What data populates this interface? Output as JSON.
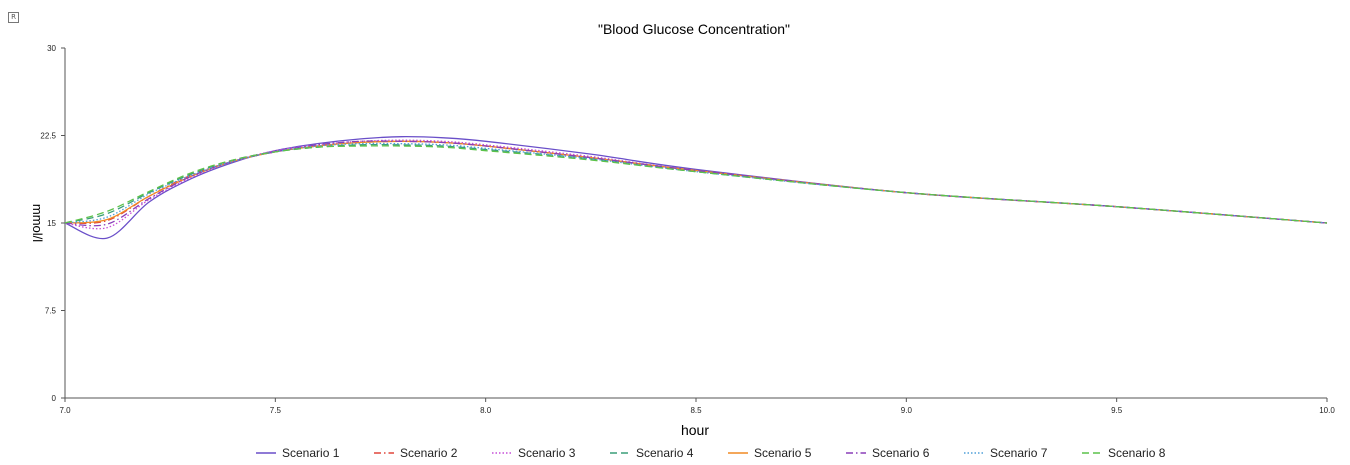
{
  "chart_data": {
    "type": "line",
    "title": "\"Blood Glucose Concentration\"",
    "xlabel": "hour",
    "ylabel": "mmol/l",
    "xlim": [
      7.0,
      10.0
    ],
    "ylim": [
      0,
      30
    ],
    "xticks": [
      "7.0",
      "7.5",
      "8.0",
      "8.5",
      "9.0",
      "9.5",
      "10.0"
    ],
    "xtick_values": [
      7.0,
      7.5,
      8.0,
      8.5,
      9.0,
      9.5,
      10.0
    ],
    "yticks": [
      "0",
      "7.5",
      "15",
      "22.5",
      "30"
    ],
    "ytick_values": [
      0,
      7.5,
      15,
      22.5,
      30
    ],
    "grid": false,
    "legend_position": "bottom",
    "series": [
      {
        "name": "Scenario 1",
        "color": "#6a4fc9",
        "dash": "solid",
        "x": [
          7.0,
          7.1,
          7.2,
          7.3,
          7.4,
          7.5,
          7.6,
          7.7,
          7.8,
          7.9,
          8.0,
          8.25,
          8.5,
          9.0,
          9.5,
          10.0
        ],
        "y": [
          15.0,
          13.7,
          16.8,
          18.8,
          20.2,
          21.2,
          21.8,
          22.2,
          22.4,
          22.3,
          22.0,
          20.9,
          19.6,
          17.6,
          16.4,
          15.0
        ]
      },
      {
        "name": "Scenario 2",
        "color": "#e0463b",
        "dash": "dashdot",
        "x": [
          7.0,
          7.1,
          7.2,
          7.3,
          7.4,
          7.5,
          7.6,
          7.7,
          7.8,
          7.9,
          8.0,
          8.25,
          8.5,
          9.0,
          9.5,
          10.0
        ],
        "y": [
          15.0,
          15.2,
          17.3,
          19.1,
          20.3,
          21.1,
          21.6,
          21.9,
          22.0,
          21.9,
          21.6,
          20.6,
          19.5,
          17.6,
          16.4,
          15.0
        ]
      },
      {
        "name": "Scenario 3",
        "color": "#c64ed8",
        "dash": "dotted",
        "x": [
          7.0,
          7.1,
          7.2,
          7.3,
          7.4,
          7.5,
          7.6,
          7.7,
          7.8,
          7.9,
          8.0,
          8.25,
          8.5,
          9.0,
          9.5,
          10.0
        ],
        "y": [
          15.0,
          14.6,
          17.0,
          18.9,
          20.3,
          21.2,
          21.7,
          22.0,
          22.1,
          22.0,
          21.7,
          20.7,
          19.5,
          17.6,
          16.4,
          15.0
        ]
      },
      {
        "name": "Scenario 4",
        "color": "#3a9e78",
        "dash": "dashed",
        "x": [
          7.0,
          7.1,
          7.2,
          7.3,
          7.4,
          7.5,
          7.6,
          7.7,
          7.8,
          7.9,
          8.0,
          8.25,
          8.5,
          9.0,
          9.5,
          10.0
        ],
        "y": [
          15.0,
          15.8,
          17.6,
          19.2,
          20.4,
          21.1,
          21.5,
          21.7,
          21.7,
          21.6,
          21.3,
          20.5,
          19.4,
          17.6,
          16.4,
          15.0
        ]
      },
      {
        "name": "Scenario 5",
        "color": "#f08a24",
        "dash": "solid",
        "x": [
          7.0,
          7.1,
          7.2,
          7.3,
          7.4,
          7.5,
          7.6,
          7.7,
          7.8,
          7.9,
          8.0,
          8.25,
          8.5,
          9.0,
          9.5,
          10.0
        ],
        "y": [
          15.0,
          15.3,
          17.3,
          19.0,
          20.3,
          21.1,
          21.6,
          21.9,
          22.0,
          21.9,
          21.6,
          20.6,
          19.5,
          17.6,
          16.4,
          15.0
        ]
      },
      {
        "name": "Scenario 6",
        "color": "#8a3fb8",
        "dash": "dashdot",
        "x": [
          7.0,
          7.1,
          7.2,
          7.3,
          7.4,
          7.5,
          7.6,
          7.7,
          7.8,
          7.9,
          8.0,
          8.25,
          8.5,
          9.0,
          9.5,
          10.0
        ],
        "y": [
          15.0,
          14.9,
          17.1,
          19.0,
          20.3,
          21.1,
          21.7,
          22.0,
          22.0,
          21.9,
          21.6,
          20.6,
          19.5,
          17.6,
          16.4,
          15.0
        ]
      },
      {
        "name": "Scenario 7",
        "color": "#4f9fd8",
        "dash": "dotted",
        "x": [
          7.0,
          7.1,
          7.2,
          7.3,
          7.4,
          7.5,
          7.6,
          7.7,
          7.8,
          7.9,
          8.0,
          8.25,
          8.5,
          9.0,
          9.5,
          10.0
        ],
        "y": [
          15.0,
          15.5,
          17.5,
          19.1,
          20.3,
          21.1,
          21.6,
          21.8,
          21.8,
          21.7,
          21.4,
          20.5,
          19.4,
          17.6,
          16.4,
          15.0
        ]
      },
      {
        "name": "Scenario 8",
        "color": "#5cc24a",
        "dash": "dashed",
        "x": [
          7.0,
          7.1,
          7.2,
          7.3,
          7.4,
          7.5,
          7.6,
          7.7,
          7.8,
          7.9,
          8.0,
          8.25,
          8.5,
          9.0,
          9.5,
          10.0
        ],
        "y": [
          15.0,
          16.0,
          17.7,
          19.3,
          20.4,
          21.1,
          21.5,
          21.6,
          21.6,
          21.5,
          21.2,
          20.4,
          19.4,
          17.6,
          16.4,
          15.0
        ]
      }
    ]
  },
  "toolbar": {
    "corner_icon_glyph": "R"
  }
}
